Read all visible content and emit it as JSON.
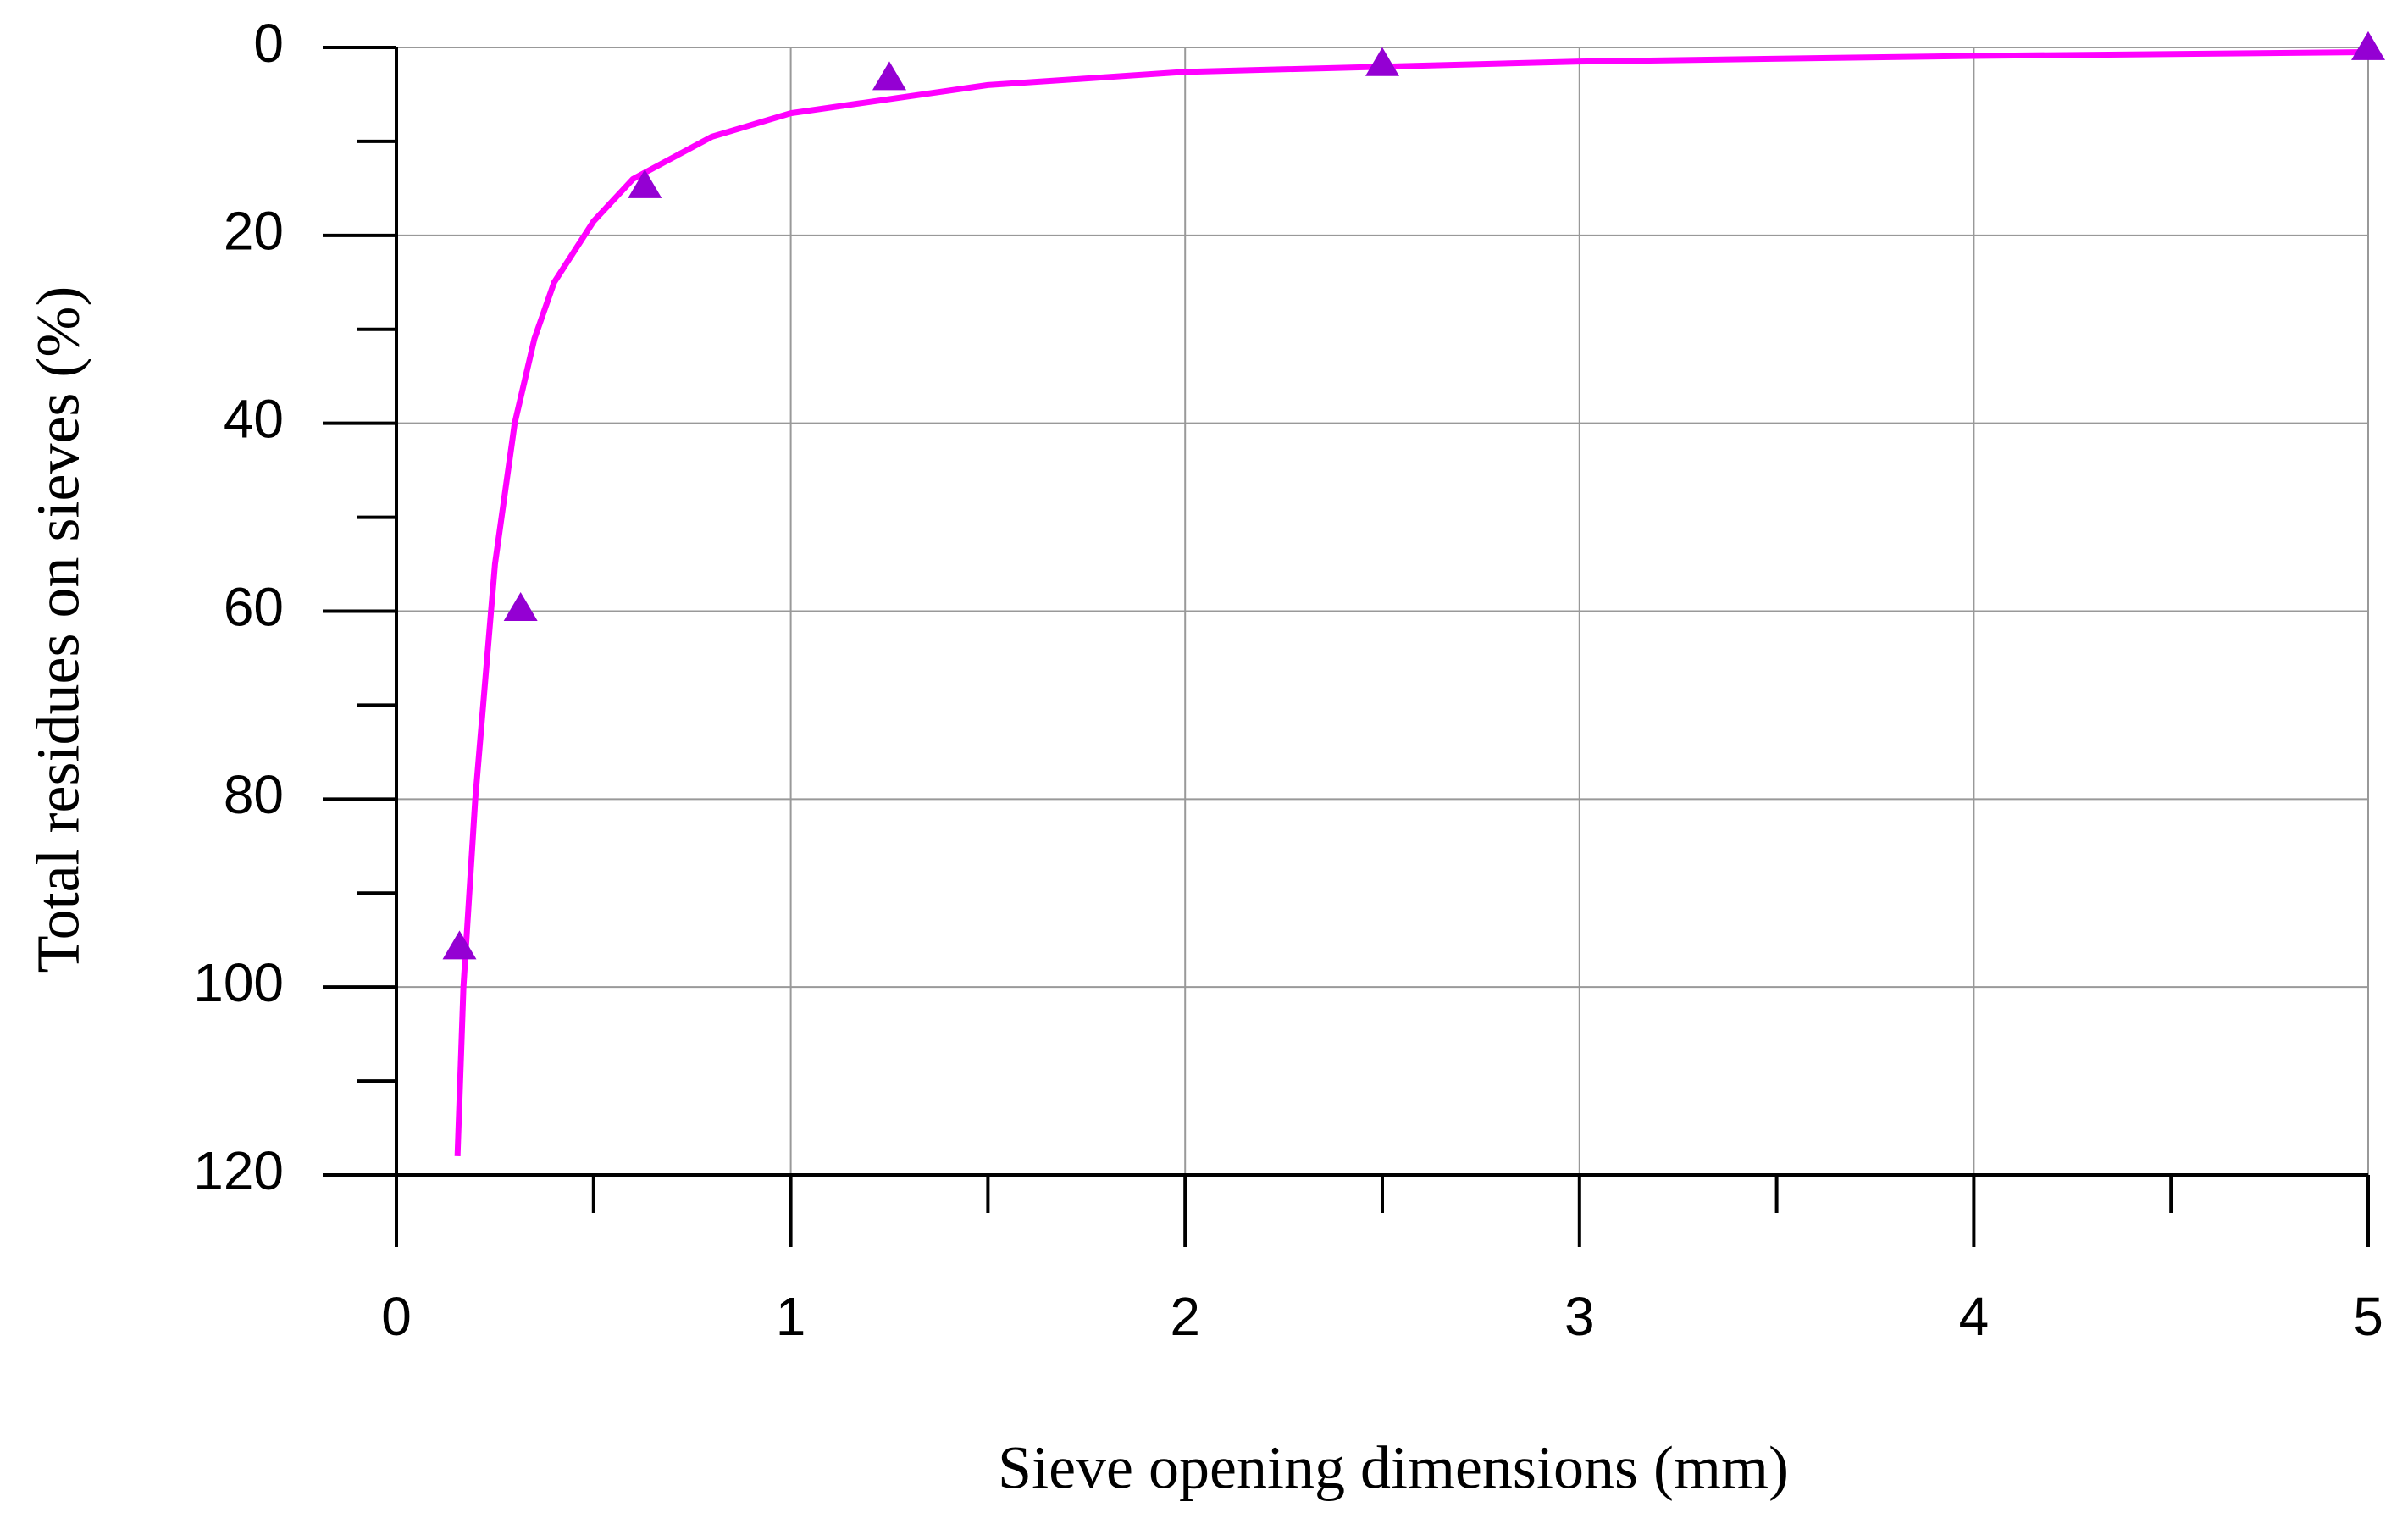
{
  "chart_data": {
    "type": "scatter",
    "xlabel": "Sieve opening dimensions (mm)",
    "ylabel": "Total residues on sieves (%)",
    "xlim": [
      0,
      5
    ],
    "xticks": [
      0,
      1,
      2,
      3,
      4,
      5
    ],
    "xminorticks": [
      0.5,
      1.5,
      2.5,
      3.5,
      4.5
    ],
    "ylim": [
      120,
      0
    ],
    "yticks": [
      0,
      20,
      40,
      60,
      80,
      100,
      120
    ],
    "yminorticks": [
      10,
      30,
      50,
      70,
      90,
      110
    ],
    "grid": true,
    "series": [
      {
        "mode": "line",
        "color": "#ff00ff",
        "x": [
          0.155,
          0.17,
          0.2,
          0.25,
          0.3,
          0.35,
          0.4,
          0.5,
          0.6,
          0.8,
          1.0,
          1.5,
          2.0,
          3.0,
          4.0,
          5.0
        ],
        "values": [
          118,
          100,
          80,
          55,
          40,
          31,
          25,
          18.5,
          14,
          9.5,
          7,
          4,
          2.6,
          1.5,
          0.9,
          0.5
        ]
      },
      {
        "mode": "markers",
        "marker": "triangle",
        "color": "#9400d3",
        "x": [
          0.16,
          0.315,
          0.63,
          1.25,
          2.5,
          5
        ],
        "values": [
          96,
          60,
          15,
          3.5,
          2,
          0.3
        ]
      }
    ]
  }
}
